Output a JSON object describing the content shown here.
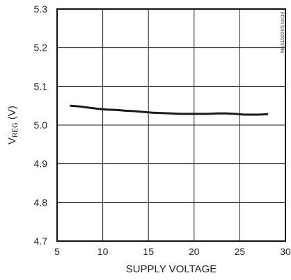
{
  "chart_data": {
    "type": "line",
    "title": "",
    "xlabel": "SUPPLY VOLTAGE",
    "ylabel_main": "V",
    "ylabel_sub": "REG",
    "ylabel_unit": " (V)",
    "xlim": [
      5,
      30
    ],
    "ylim": [
      4.7,
      5.3
    ],
    "xticks": [
      "5",
      "10",
      "15",
      "20",
      "25",
      "30"
    ],
    "yticks": [
      "4.7",
      "4.8",
      "4.9",
      "5.0",
      "5.1",
      "5.2",
      "5.3"
    ],
    "grid": true,
    "legend": "none",
    "watermark": "MAX15004/5 toc14",
    "line_color": "#1a1a1a",
    "series": [
      {
        "x": [
          6.5,
          7.5,
          8.5,
          9.5,
          10.5,
          11.5,
          12.5,
          13.5,
          14.5,
          15.5,
          16.5,
          17.5,
          18.5,
          19.5,
          20.5,
          21.5,
          22.5,
          23.5,
          24.5,
          25.5,
          26.5,
          27.0,
          28.0
        ],
        "y": [
          5.05,
          5.048,
          5.045,
          5.042,
          5.04,
          5.039,
          5.037,
          5.036,
          5.034,
          5.032,
          5.031,
          5.03,
          5.029,
          5.029,
          5.029,
          5.029,
          5.03,
          5.03,
          5.029,
          5.027,
          5.027,
          5.027,
          5.028
        ]
      }
    ]
  }
}
